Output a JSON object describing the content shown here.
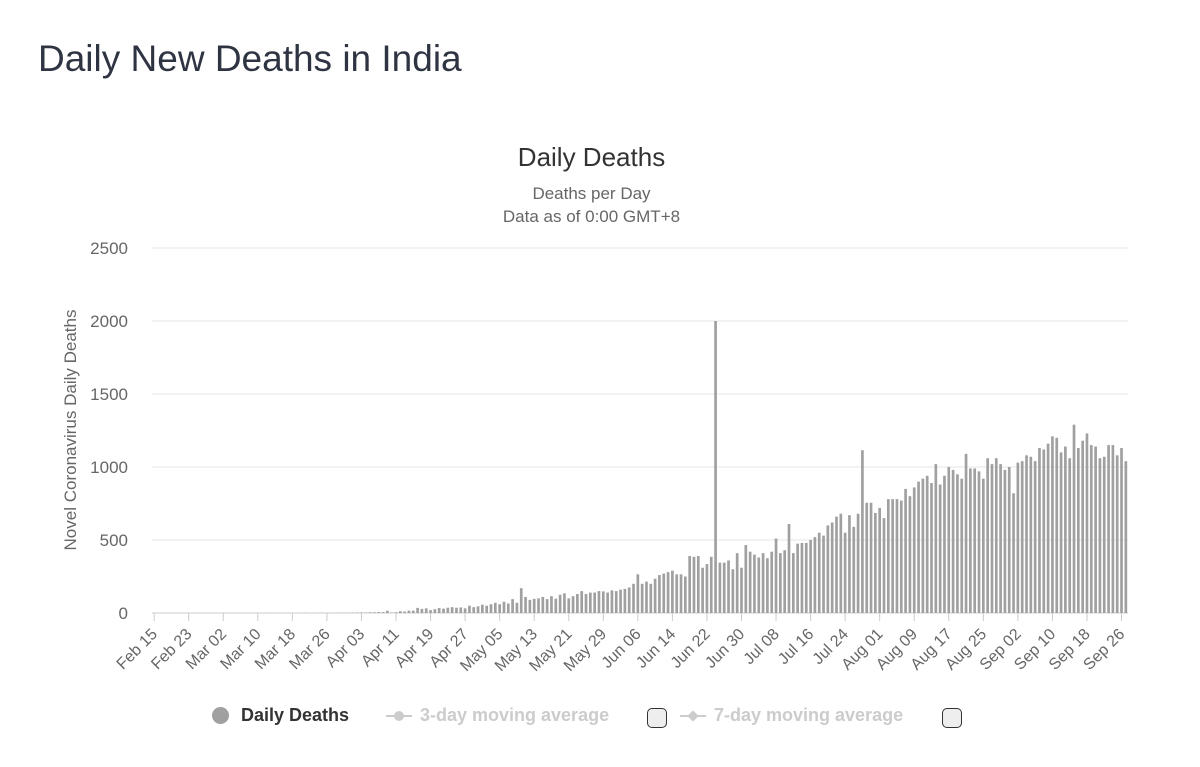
{
  "page_title": "Daily New Deaths in India",
  "colors": {
    "bar": "#a0a0a0",
    "grid": "#e6e6e6",
    "legend_inactive": "#cccccc",
    "title": "#2f3442"
  },
  "legend": {
    "daily": "Daily Deaths",
    "ma3": "3-day moving average",
    "ma7": "7-day moving average"
  },
  "chart_data": {
    "type": "bar",
    "title": "Daily Deaths",
    "subtitle": "Deaths per Day",
    "subtitle2": "Data as of 0:00 GMT+8",
    "xlabel": "",
    "ylabel": "Novel Coronavirus Daily Deaths",
    "ylim": [
      0,
      2500
    ],
    "yticks": [
      0,
      500,
      1000,
      1500,
      2000,
      2500
    ],
    "grid": true,
    "legend_position": "bottom",
    "start_date": "Feb 15",
    "tick_labels": [
      "Feb 15",
      "Feb 23",
      "Mar 02",
      "Mar 10",
      "Mar 18",
      "Mar 26",
      "Apr 03",
      "Apr 11",
      "Apr 19",
      "Apr 27",
      "May 05",
      "May 13",
      "May 21",
      "May 29",
      "Jun 06",
      "Jun 14",
      "Jun 22",
      "Jun 30",
      "Jul 08",
      "Jul 16",
      "Jul 24",
      "Aug 01",
      "Aug 09",
      "Aug 17",
      "Aug 25",
      "Sep 02",
      "Sep 10",
      "Sep 18",
      "Sep 26"
    ],
    "tick_every": 8,
    "series": [
      {
        "name": "Daily Deaths",
        "values": [
          0,
          0,
          0,
          0,
          0,
          0,
          0,
          0,
          0,
          0,
          0,
          0,
          0,
          0,
          0,
          0,
          0,
          0,
          0,
          0,
          0,
          0,
          0,
          0,
          0,
          0,
          0,
          1,
          0,
          0,
          0,
          1,
          0,
          0,
          0,
          1,
          0,
          1,
          0,
          1,
          0,
          1,
          1,
          1,
          2,
          1,
          2,
          3,
          4,
          3,
          5,
          5,
          6,
          6,
          15,
          3,
          5,
          12,
          10,
          16,
          16,
          35,
          28,
          32,
          20,
          26,
          34,
          30,
          36,
          40,
          36,
          38,
          32,
          50,
          40,
          46,
          57,
          50,
          60,
          70,
          60,
          77,
          65,
          95,
          70,
          170,
          110,
          90,
          97,
          100,
          110,
          95,
          115,
          98,
          125,
          135,
          100,
          115,
          130,
          150,
          130,
          140,
          140,
          150,
          148,
          140,
          155,
          150,
          160,
          165,
          175,
          200,
          265,
          200,
          215,
          200,
          235,
          260,
          270,
          280,
          290,
          265,
          265,
          250,
          390,
          385,
          390,
          310,
          335,
          385,
          2000,
          345,
          345,
          360,
          300,
          410,
          310,
          465,
          420,
          400,
          380,
          410,
          375,
          420,
          510,
          410,
          430,
          610,
          410,
          475,
          480,
          480,
          500,
          520,
          550,
          530,
          600,
          620,
          660,
          680,
          550,
          670,
          590,
          680,
          1115,
          755,
          755,
          685,
          720,
          650,
          780,
          780,
          780,
          770,
          850,
          800,
          860,
          900,
          920,
          940,
          890,
          1020,
          880,
          940,
          1000,
          980,
          950,
          920,
          1090,
          990,
          990,
          970,
          920,
          1060,
          1020,
          1060,
          1020,
          980,
          1000,
          820,
          1030,
          1040,
          1080,
          1070,
          1040,
          1130,
          1120,
          1160,
          1210,
          1200,
          1100,
          1140,
          1060,
          1290,
          1130,
          1180,
          1230,
          1150,
          1140,
          1060,
          1070,
          1150,
          1150,
          1080,
          1130,
          1040
        ]
      },
      {
        "name": "3-day moving average",
        "values": []
      },
      {
        "name": "7-day moving average",
        "values": []
      }
    ]
  }
}
